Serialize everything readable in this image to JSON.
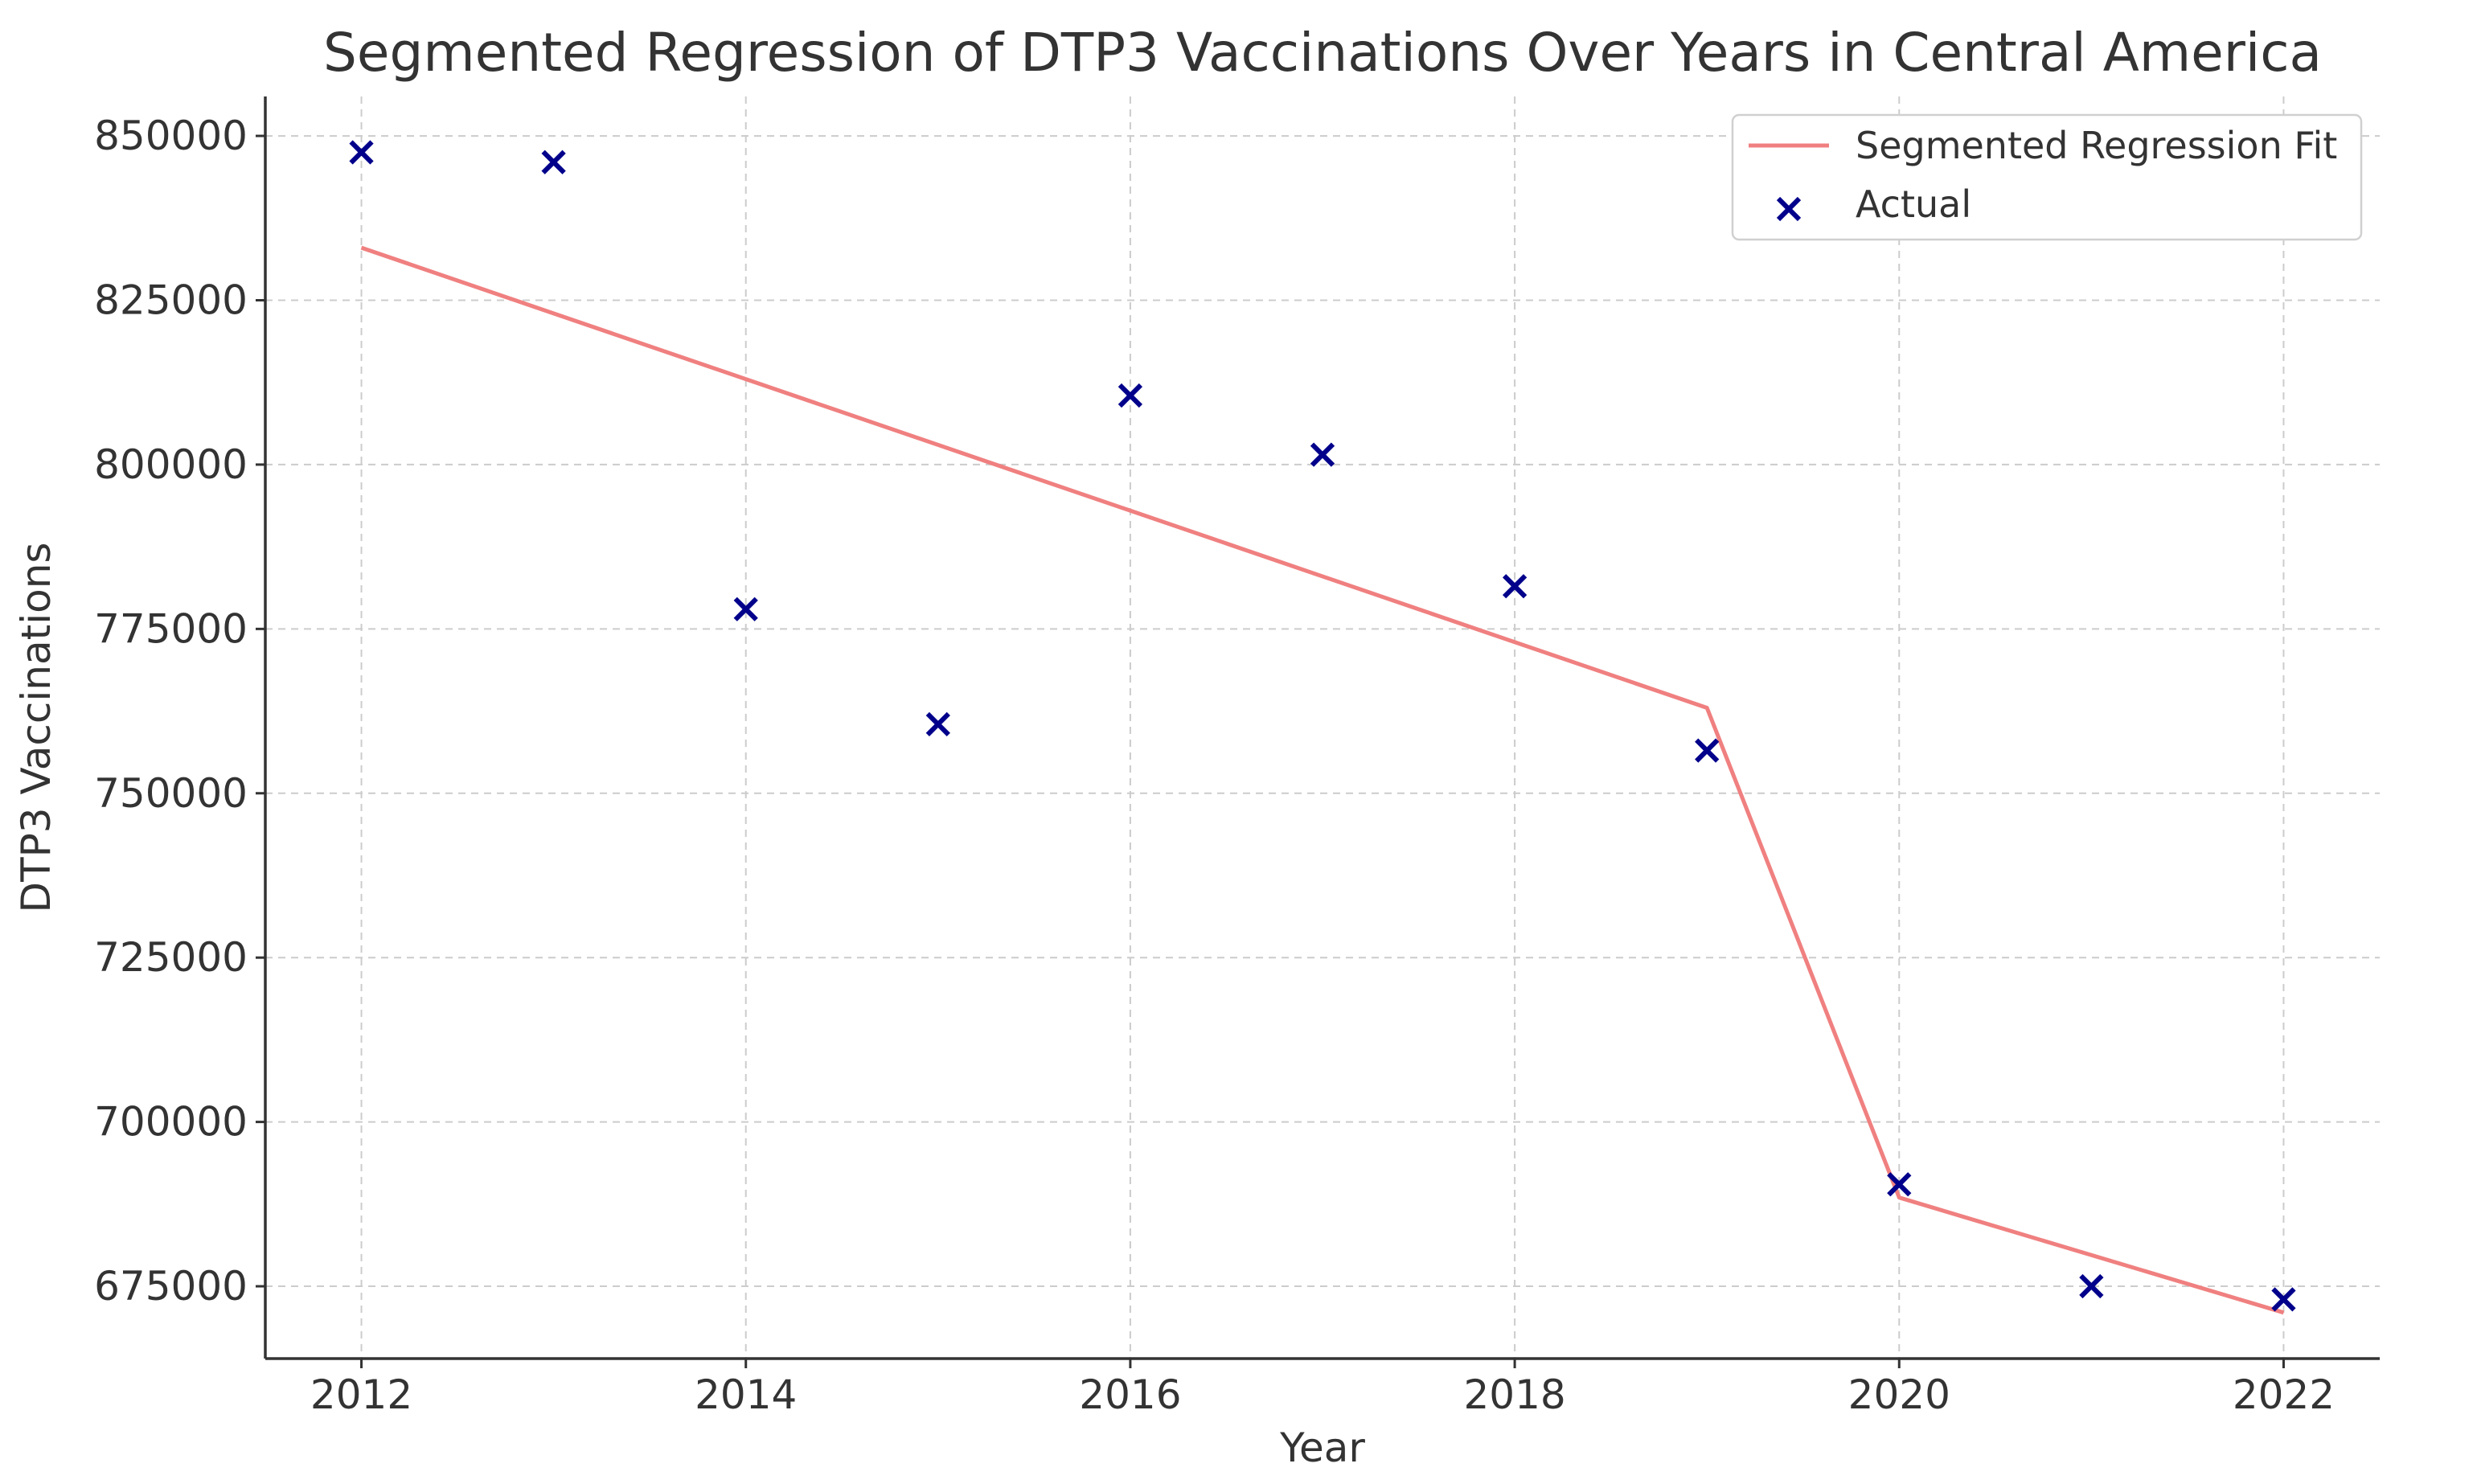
{
  "chart_data": {
    "type": "line",
    "title": "Segmented Regression of DTP3 Vaccinations Over Years in Central America",
    "xlabel": "Year",
    "ylabel": "DTP3 Vaccinations",
    "xlim": [
      2011.5,
      2022.5
    ],
    "ylim": [
      664000,
      856000
    ],
    "x_ticks": [
      2012,
      2014,
      2016,
      2018,
      2020,
      2022
    ],
    "x_tick_labels": [
      "2012",
      "2014",
      "2016",
      "2018",
      "2020",
      "2022"
    ],
    "y_ticks": [
      675000,
      700000,
      725000,
      750000,
      775000,
      800000,
      825000,
      850000
    ],
    "y_tick_labels": [
      "675000",
      "700000",
      "725000",
      "750000",
      "775000",
      "800000",
      "825000",
      "850000"
    ],
    "grid": true,
    "legend_position": "top-right",
    "legend": [
      "Segmented Regression Fit",
      "Actual"
    ],
    "series": [
      {
        "name": "Segmented Regression Fit",
        "kind": "line",
        "color": "#f08080",
        "x": [
          2012,
          2019,
          2020,
          2022
        ],
        "y": [
          833000,
          763000,
          688500,
          671000
        ]
      },
      {
        "name": "Actual",
        "kind": "scatter",
        "marker": "x",
        "color": "#00008b",
        "x": [
          2012,
          2013,
          2014,
          2015,
          2016,
          2017,
          2018,
          2019,
          2020,
          2021,
          2022
        ],
        "y": [
          847500,
          846000,
          778000,
          760500,
          810500,
          801500,
          781500,
          756500,
          690500,
          675000,
          673000
        ]
      }
    ]
  }
}
